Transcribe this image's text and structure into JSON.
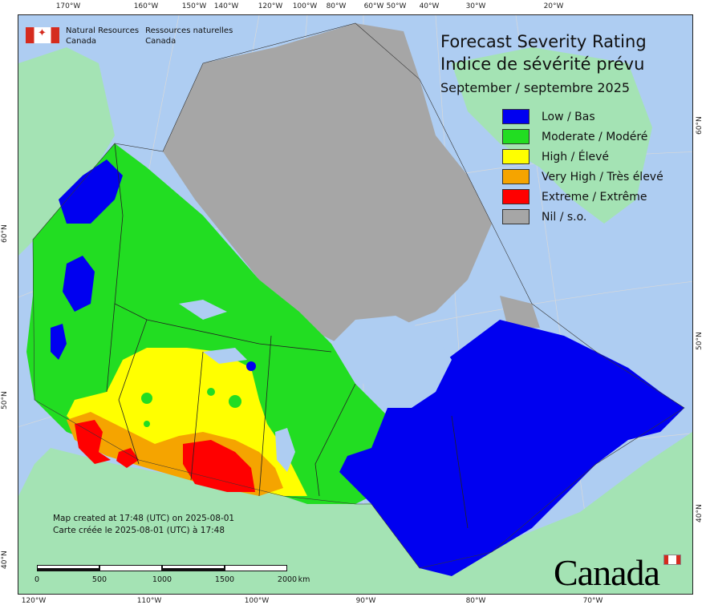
{
  "agency": {
    "name_en_line1": "Natural Resources",
    "name_en_line2": "Canada",
    "name_fr_line1": "Ressources naturelles",
    "name_fr_line2": "Canada"
  },
  "title": {
    "en": "Forecast Severity Rating",
    "fr": "Indice de sévérité prévu",
    "period": "September / septembre 2025"
  },
  "legend": [
    {
      "label": "Low / Bas",
      "color": "#0000f0"
    },
    {
      "label": "Moderate / Modéré",
      "color": "#22dd22"
    },
    {
      "label": "High / Élevé",
      "color": "#ffff00"
    },
    {
      "label": "Very High / Très élevé",
      "color": "#f5a400"
    },
    {
      "label": "Extreme / Extrême",
      "color": "#ff0000"
    },
    {
      "label": "Nil / s.o.",
      "color": "#a6a6a6"
    }
  ],
  "colors": {
    "ocean": "#aecdf2",
    "land_outside": "#a4e3b4",
    "graticule": "#dddddd"
  },
  "ticks": {
    "top": [
      "170°W",
      "160°W",
      "150°W",
      "140°W",
      "120°W",
      "100°W",
      "80°W",
      "60°W",
      "50°W",
      "40°W",
      "30°W",
      "20°W"
    ],
    "bottom": [
      "120°W",
      "110°W",
      "100°W",
      "90°W",
      "80°W",
      "70°W"
    ],
    "left": [
      "60°N",
      "50°N",
      "40°N"
    ],
    "right": [
      "60°N",
      "50°N",
      "40°N"
    ]
  },
  "created": {
    "en": "Map created at 17:48 (UTC) on 2025-08-01",
    "fr": "Carte créée le 2025-08-01 (UTC) à 17:48"
  },
  "scale": {
    "labels": [
      "0",
      "500",
      "1000",
      "1500",
      "2000"
    ],
    "unit": "km"
  },
  "wordmark": "Canada"
}
